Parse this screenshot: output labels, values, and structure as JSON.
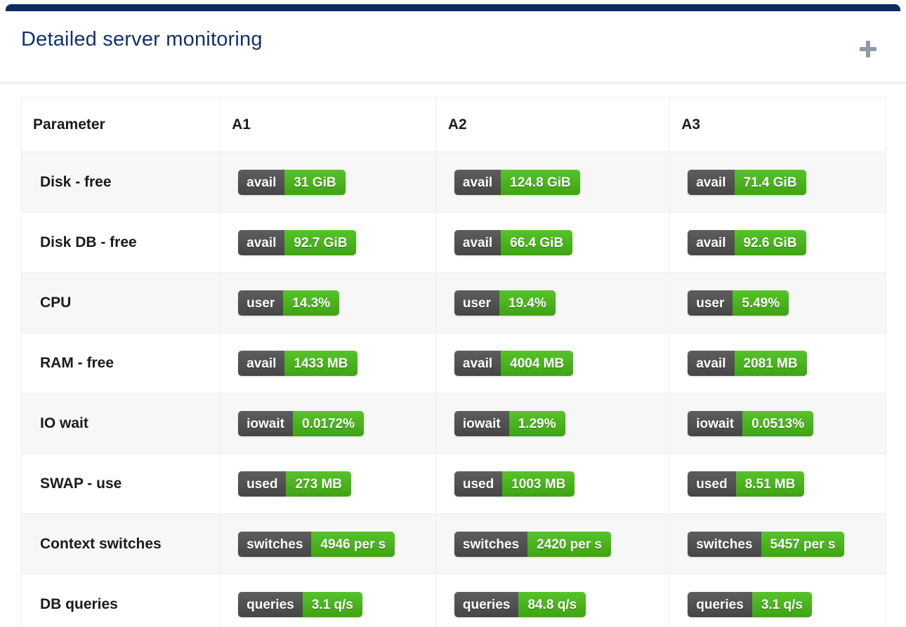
{
  "header": {
    "title": "Detailed server monitoring"
  },
  "colors": {
    "accent_navy": "#0e2a63",
    "title_navy": "#13316d",
    "badge_label_bg": "#4f4f4f",
    "badge_value_green": "#4ab31c",
    "row_stripe": "#f7f7f7",
    "table_border": "#eeeeee",
    "plus_icon_gray": "#8d9aab"
  },
  "table": {
    "columns": [
      "Parameter",
      "A1",
      "A2",
      "A3"
    ],
    "rows": [
      {
        "parameter": "Disk - free",
        "cells": [
          {
            "label": "avail",
            "value": "31 GiB"
          },
          {
            "label": "avail",
            "value": "124.8 GiB"
          },
          {
            "label": "avail",
            "value": "71.4 GiB"
          }
        ]
      },
      {
        "parameter": "Disk DB - free",
        "cells": [
          {
            "label": "avail",
            "value": "92.7 GiB"
          },
          {
            "label": "avail",
            "value": "66.4 GiB"
          },
          {
            "label": "avail",
            "value": "92.6 GiB"
          }
        ]
      },
      {
        "parameter": "CPU",
        "cells": [
          {
            "label": "user",
            "value": "14.3%"
          },
          {
            "label": "user",
            "value": "19.4%"
          },
          {
            "label": "user",
            "value": "5.49%"
          }
        ]
      },
      {
        "parameter": "RAM - free",
        "cells": [
          {
            "label": "avail",
            "value": "1433 MB"
          },
          {
            "label": "avail",
            "value": "4004 MB"
          },
          {
            "label": "avail",
            "value": "2081 MB"
          }
        ]
      },
      {
        "parameter": "IO wait",
        "cells": [
          {
            "label": "iowait",
            "value": "0.0172%"
          },
          {
            "label": "iowait",
            "value": "1.29%"
          },
          {
            "label": "iowait",
            "value": "0.0513%"
          }
        ]
      },
      {
        "parameter": "SWAP - use",
        "cells": [
          {
            "label": "used",
            "value": "273 MB"
          },
          {
            "label": "used",
            "value": "1003 MB"
          },
          {
            "label": "used",
            "value": "8.51 MB"
          }
        ]
      },
      {
        "parameter": "Context switches",
        "cells": [
          {
            "label": "switches",
            "value": "4946 per s"
          },
          {
            "label": "switches",
            "value": "2420 per s"
          },
          {
            "label": "switches",
            "value": "5457 per s"
          }
        ]
      },
      {
        "parameter": "DB queries",
        "cells": [
          {
            "label": "queries",
            "value": "3.1 q/s"
          },
          {
            "label": "queries",
            "value": "84.8 q/s"
          },
          {
            "label": "queries",
            "value": "3.1 q/s"
          }
        ]
      }
    ]
  }
}
